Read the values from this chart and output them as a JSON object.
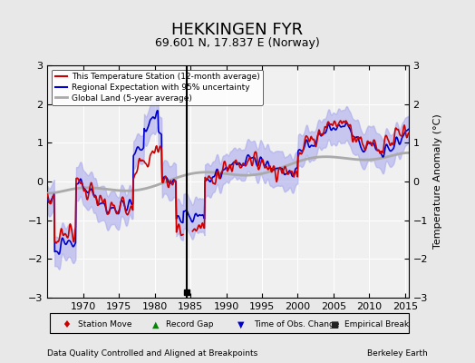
{
  "title": "HEKKINGEN FYR",
  "subtitle": "69.601 N, 17.837 E (Norway)",
  "ylabel": "Temperature Anomaly (°C)",
  "xlabel_left": "Data Quality Controlled and Aligned at Breakpoints",
  "xlabel_right": "Berkeley Earth",
  "ylim": [
    -3,
    3
  ],
  "xlim": [
    1965,
    2015.5
  ],
  "yticks": [
    -3,
    -2,
    -1,
    0,
    1,
    2,
    3
  ],
  "xticks": [
    1970,
    1975,
    1980,
    1985,
    1990,
    1995,
    2000,
    2005,
    2010,
    2015
  ],
  "bg_color": "#e8e8e8",
  "plot_bg_color": "#f0f0f0",
  "station_color": "#cc0000",
  "regional_color": "#0000cc",
  "regional_fill_color": "#aaaaee",
  "global_color": "#aaaaaa",
  "empirical_break_year": 1984.5,
  "legend_items": [
    {
      "label": "This Temperature Station (12-month average)",
      "color": "#cc0000",
      "lw": 1.5
    },
    {
      "label": "Regional Expectation with 95% uncertainty",
      "color": "#0000cc",
      "lw": 1.5
    },
    {
      "label": "Global Land (5-year average)",
      "color": "#aaaaaa",
      "lw": 2.0
    }
  ],
  "bottom_legend": [
    {
      "label": "Station Move",
      "marker": "D",
      "color": "#cc0000"
    },
    {
      "label": "Record Gap",
      "marker": "^",
      "color": "#008800"
    },
    {
      "label": "Time of Obs. Change",
      "marker": "v",
      "color": "#0000cc"
    },
    {
      "label": "Empirical Break",
      "marker": "s",
      "color": "#222222"
    }
  ]
}
